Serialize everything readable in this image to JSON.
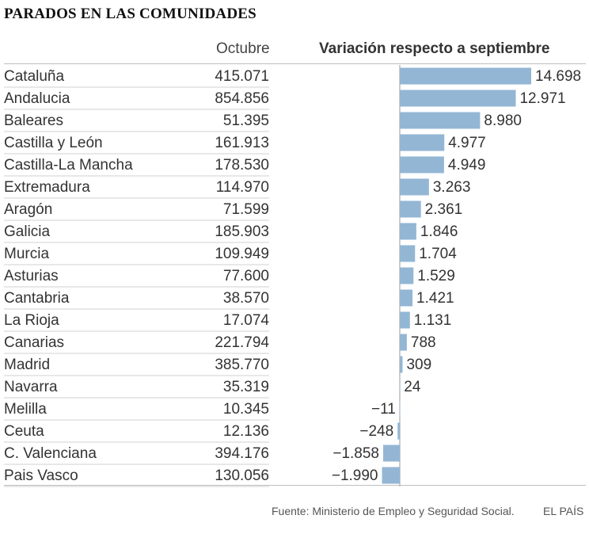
{
  "title": "PARADOS EN LAS COMUNIDADES",
  "col_octubre": "Octubre",
  "col_variacion": "Variación respecto a septiembre",
  "source": "Fuente: Ministerio de Empleo y Seguridad Social.",
  "brand": "EL PAÍS",
  "colors": {
    "bar": "#93b6d4",
    "axis": "#9a9a9a",
    "text": "#333333"
  },
  "chart_data": {
    "type": "bar",
    "orientation": "horizontal",
    "categories": [
      "Cataluña",
      "Andalucia",
      "Baleares",
      "Castilla y León",
      "Castilla-La Mancha",
      "Extremadura",
      "Aragón",
      "Galicia",
      "Murcia",
      "Asturias",
      "Cantabria",
      "La Rioja",
      "Canarias",
      "Madrid",
      "Navarra",
      "Melilla",
      "Ceuta",
      "C. Valenciana",
      "Pais Vasco"
    ],
    "octubre_labels": [
      "415.071",
      "854.856",
      "51.395",
      "161.913",
      "178.530",
      "114.970",
      "71.599",
      "185.903",
      "109.949",
      "77.600",
      "38.570",
      "17.074",
      "221.794",
      "385.770",
      "35.319",
      "10.345",
      "12.136",
      "394.176",
      "130.056"
    ],
    "values": [
      14698,
      12971,
      8980,
      4977,
      4949,
      3263,
      2361,
      1846,
      1704,
      1529,
      1421,
      1131,
      788,
      309,
      24,
      -11,
      -248,
      -1858,
      -1990
    ],
    "value_labels": [
      "14.698",
      "12.971",
      "8.980",
      "4.977",
      "4.949",
      "3.263",
      "2.361",
      "1.846",
      "1.704",
      "1.529",
      "1.421",
      "1.131",
      "788",
      "309",
      "24",
      "−11",
      "−248",
      "−1.858",
      "−1.990"
    ]
  }
}
